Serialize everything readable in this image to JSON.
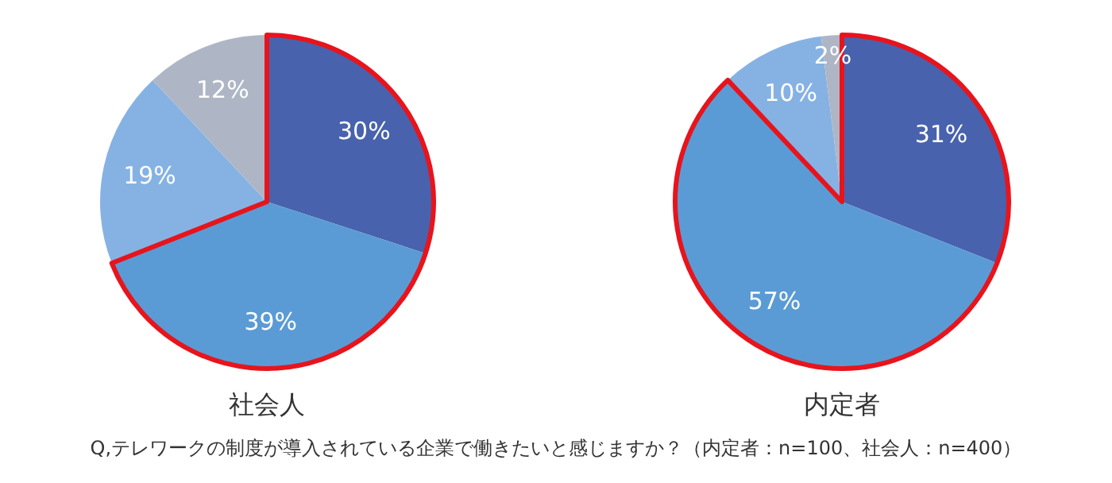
{
  "chart_data": [
    {
      "type": "pie",
      "title": "社会人",
      "categories": [
        null,
        null,
        null,
        null
      ],
      "values": [
        30,
        39,
        19,
        12
      ],
      "value_labels": [
        "30%",
        "39%",
        "19%",
        "12%"
      ],
      "colors": [
        "#4862ad",
        "#5b9bd5",
        "#86b2e3",
        "#aeb6c6"
      ],
      "annotations": [
        "Q,テレワークの制度が導入されている企業で働きたいと感じますか？（内定者：n=100、社会人：n=400）"
      ]
    },
    {
      "type": "pie",
      "title": "内定者",
      "categories": [
        null,
        null,
        null,
        null
      ],
      "values": [
        31,
        57,
        10,
        2
      ],
      "value_labels": [
        "31%",
        "57%",
        "10%",
        "2%"
      ],
      "colors": [
        "#4862ad",
        "#5b9bd5",
        "#86b2e3",
        "#aeb6c6"
      ]
    }
  ]
}
